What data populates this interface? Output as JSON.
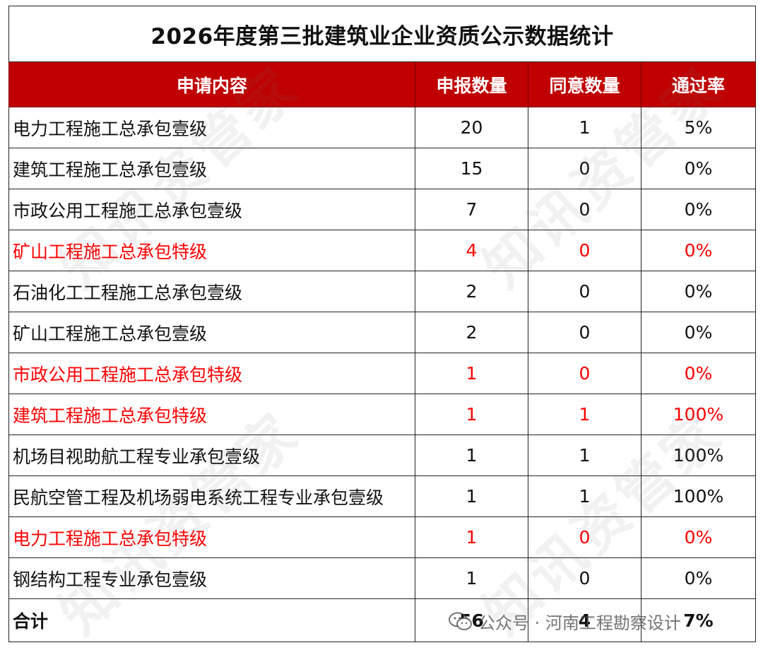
{
  "title": "2026年度第三批建筑业企业资质公示数据统计",
  "headers": [
    "申请内容",
    "申报数量",
    "同意数量",
    "通过率"
  ],
  "rows": [
    {
      "name": "电力工程施工总承包壹级",
      "declared": "20",
      "approved": "1",
      "rate": "5%",
      "highlight": false
    },
    {
      "name": "建筑工程施工总承包壹级",
      "declared": "15",
      "approved": "0",
      "rate": "0%",
      "highlight": false
    },
    {
      "name": "市政公用工程施工总承包壹级",
      "declared": "7",
      "approved": "0",
      "rate": "0%",
      "highlight": false
    },
    {
      "name": "矿山工程施工总承包特级",
      "declared": "4",
      "approved": "0",
      "rate": "0%",
      "highlight": true
    },
    {
      "name": "石油化工工程施工总承包壹级",
      "declared": "2",
      "approved": "0",
      "rate": "0%",
      "highlight": false
    },
    {
      "name": "矿山工程施工总承包壹级",
      "declared": "2",
      "approved": "0",
      "rate": "0%",
      "highlight": false
    },
    {
      "name": "市政公用工程施工总承包特级",
      "declared": "1",
      "approved": "0",
      "rate": "0%",
      "highlight": true
    },
    {
      "name": "建筑工程施工总承包特级",
      "declared": "1",
      "approved": "1",
      "rate": "100%",
      "highlight": true
    },
    {
      "name": "机场目视助航工程专业承包壹级",
      "declared": "1",
      "approved": "1",
      "rate": "100%",
      "highlight": false
    },
    {
      "name": "民航空管工程及机场弱电系统工程专业承包壹级",
      "declared": "1",
      "approved": "1",
      "rate": "100%",
      "highlight": false
    },
    {
      "name": "电力工程施工总承包特级",
      "declared": "1",
      "approved": "0",
      "rate": "0%",
      "highlight": true
    },
    {
      "name": "钢结构工程专业承包壹级",
      "declared": "1",
      "approved": "0",
      "rate": "0%",
      "highlight": false
    }
  ],
  "total": {
    "label": "合计",
    "declared": "56",
    "approved": "4",
    "rate": "7%"
  },
  "watermark": "知讯资管家",
  "source": {
    "icon": "wechat-icon",
    "text": "公众号 · 河南工程勘察设计"
  },
  "colors": {
    "header_bg": "#c00000",
    "header_text": "#ffffff",
    "highlight_text": "#ff0000"
  }
}
